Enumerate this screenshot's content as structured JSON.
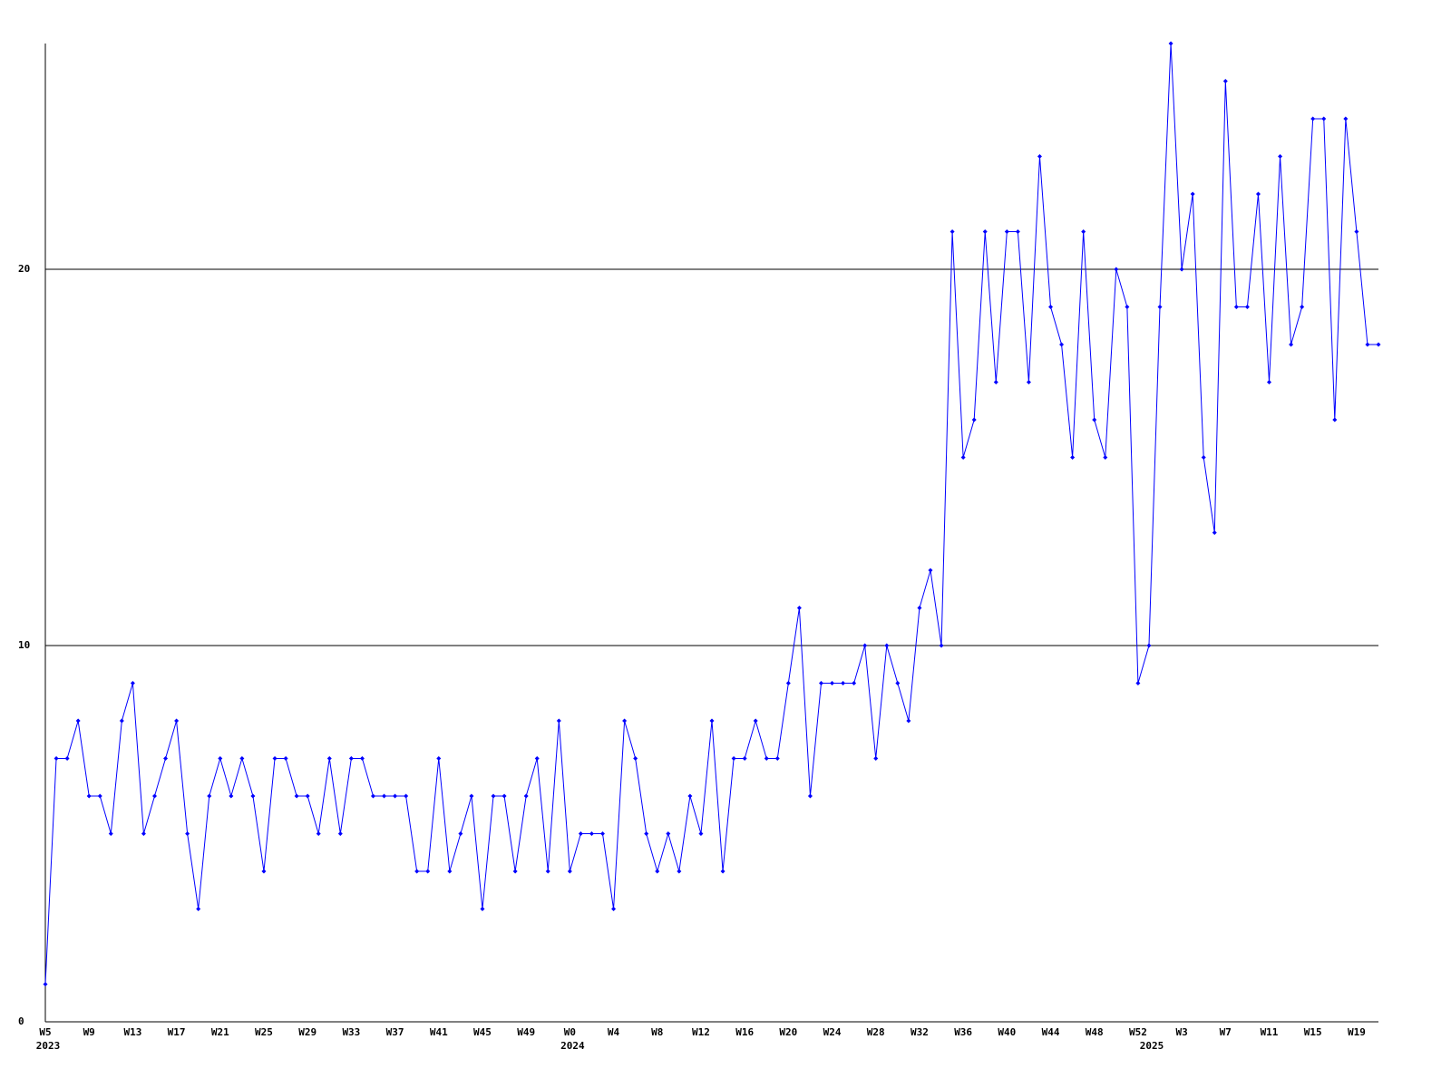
{
  "chart_data": {
    "type": "line",
    "categories": [
      "W5",
      null,
      null,
      null,
      "W9",
      null,
      null,
      null,
      "W13",
      null,
      null,
      null,
      "W17",
      null,
      null,
      null,
      "W21",
      null,
      null,
      null,
      "W25",
      null,
      null,
      null,
      "W29",
      null,
      null,
      null,
      "W33",
      null,
      null,
      null,
      "W37",
      null,
      null,
      null,
      "W41",
      null,
      null,
      null,
      "W45",
      null,
      null,
      null,
      "W49",
      null,
      null,
      null,
      "W0",
      null,
      null,
      null,
      "W4",
      null,
      null,
      null,
      "W8",
      null,
      null,
      null,
      "W12",
      null,
      null,
      null,
      "W16",
      null,
      null,
      null,
      "W20",
      null,
      null,
      null,
      "W24",
      null,
      null,
      null,
      "W28",
      null,
      null,
      null,
      "W32",
      null,
      null,
      null,
      "W36",
      null,
      null,
      null,
      "W40",
      null,
      null,
      null,
      "W44",
      null,
      null,
      null,
      "W48",
      null,
      null,
      null,
      "W52",
      null,
      null,
      null,
      "W3",
      null,
      null,
      null,
      "W7",
      null,
      null,
      null,
      "W11",
      null,
      null,
      null,
      "W15",
      null,
      null,
      null,
      "W19",
      null,
      null
    ],
    "year_labels": [
      {
        "label": "2023",
        "at": 0
      },
      {
        "label": "2024",
        "at": 48
      },
      {
        "label": "2025",
        "at": 101
      }
    ],
    "series": [
      {
        "color": "#0000ff",
        "values": [
          1,
          7,
          7,
          8,
          6,
          6,
          5,
          8,
          9,
          5,
          6,
          7,
          8,
          5,
          3,
          6,
          7,
          6,
          7,
          6,
          4,
          7,
          7,
          6,
          6,
          5,
          7,
          5,
          7,
          7,
          6,
          6,
          6,
          6,
          4,
          4,
          7,
          4,
          5,
          6,
          3,
          6,
          6,
          4,
          6,
          7,
          4,
          8,
          4,
          5,
          5,
          5,
          3,
          8,
          7,
          5,
          4,
          5,
          4,
          6,
          5,
          8,
          4,
          7,
          7,
          8,
          7,
          7,
          9,
          11,
          6,
          9,
          9,
          9,
          9,
          10,
          7,
          10,
          9,
          8,
          11,
          12,
          10,
          21,
          15,
          16,
          21,
          17,
          21,
          21,
          17,
          23,
          19,
          18,
          15,
          21,
          16,
          15,
          20,
          19,
          9,
          10,
          19,
          26,
          20,
          22,
          15,
          13,
          25,
          19,
          19,
          22,
          17,
          23,
          18,
          19,
          24,
          24,
          16,
          24,
          21,
          18,
          18
        ]
      }
    ],
    "ylim": [
      0,
      26
    ],
    "yticks": [
      0,
      10,
      20
    ],
    "grid": true
  }
}
